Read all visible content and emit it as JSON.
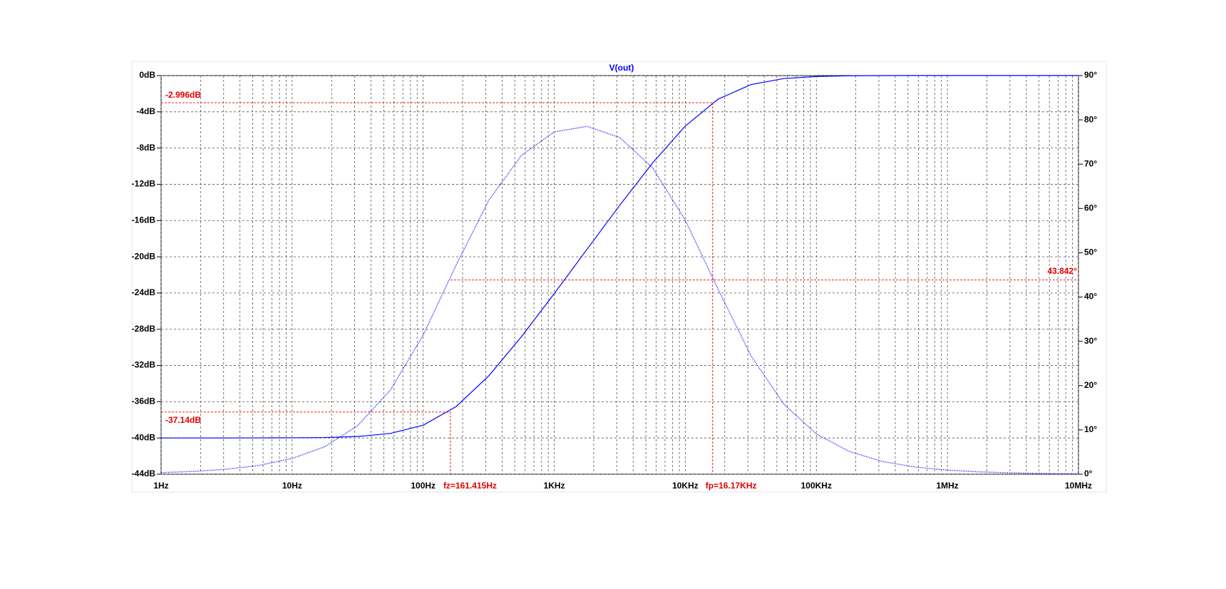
{
  "chart_data": {
    "type": "line",
    "title": "V(out)",
    "xscale": "log",
    "x": [
      1,
      1.778,
      3.162,
      5.623,
      10,
      17.78,
      31.62,
      56.23,
      100,
      177.8,
      316.2,
      562.3,
      1000,
      1778,
      3162,
      5623,
      10000,
      17783,
      31623,
      56234,
      100000,
      177828,
      316228,
      562341,
      1000000,
      1778279,
      3162278,
      5623413,
      10000000
    ],
    "series": [
      {
        "color": "#0000ff",
        "style": "solid",
        "axis": "y",
        "values": [
          -40.0,
          -40.0,
          -40.0,
          -39.99,
          -39.98,
          -39.95,
          -39.84,
          -39.5,
          -38.59,
          -36.55,
          -33.15,
          -28.82,
          -24.07,
          -19.17,
          -14.31,
          -9.65,
          -5.57,
          -2.6,
          -1.0,
          -0.33,
          -0.1,
          -0.02,
          0.0,
          0.01,
          0.01,
          0.01,
          0.01,
          0.01,
          0.01
        ]
      },
      {
        "color": "#0000ff",
        "style": "dotted",
        "axis": "y2",
        "values": [
          0.36,
          0.63,
          1.12,
          2.0,
          3.55,
          6.22,
          10.97,
          19.01,
          31.42,
          47.14,
          61.84,
          71.99,
          77.29,
          78.53,
          76.01,
          69.19,
          57.35,
          41.77,
          26.79,
          15.88,
          9.1,
          5.15,
          2.9,
          1.63,
          0.92,
          0.52,
          0.29,
          0.16,
          0.09
        ]
      }
    ],
    "xlim": [
      1,
      10000000
    ],
    "xticks": [
      {
        "value": 1,
        "label": "1Hz"
      },
      {
        "value": 10,
        "label": "10Hz"
      },
      {
        "value": 100,
        "label": "100Hz"
      },
      {
        "value": 1000,
        "label": "1KHz"
      },
      {
        "value": 10000,
        "label": "10KHz"
      },
      {
        "value": 100000,
        "label": "100KHz"
      },
      {
        "value": 1000000,
        "label": "1MHz"
      },
      {
        "value": 10000000,
        "label": "10MHz"
      }
    ],
    "ylim": [
      -44,
      0
    ],
    "yticks": [
      {
        "value": 0,
        "label": "0dB"
      },
      {
        "value": -4,
        "label": "-4dB"
      },
      {
        "value": -8,
        "label": "-8dB"
      },
      {
        "value": -12,
        "label": "-12dB"
      },
      {
        "value": -16,
        "label": "-16dB"
      },
      {
        "value": -20,
        "label": "-20dB"
      },
      {
        "value": -24,
        "label": "-24dB"
      },
      {
        "value": -28,
        "label": "-28dB"
      },
      {
        "value": -32,
        "label": "-32dB"
      },
      {
        "value": -36,
        "label": "-36dB"
      },
      {
        "value": -40,
        "label": "-40dB"
      },
      {
        "value": -44,
        "label": "-44dB"
      }
    ],
    "y2lim": [
      0,
      90
    ],
    "y2ticks": [
      {
        "value": 90,
        "label": "90°"
      },
      {
        "value": 80,
        "label": "80°"
      },
      {
        "value": 70,
        "label": "70°"
      },
      {
        "value": 60,
        "label": "60°"
      },
      {
        "value": 50,
        "label": "50°"
      },
      {
        "value": 40,
        "label": "40°"
      },
      {
        "value": 30,
        "label": "30°"
      },
      {
        "value": 20,
        "label": "20°"
      },
      {
        "value": 10,
        "label": "10°"
      },
      {
        "value": 0,
        "label": "0°"
      }
    ],
    "grid": true,
    "cursor_color": "#e00000",
    "cursors": [
      {
        "x": {
          "value": 161.415,
          "label": "fz=161.415Hz"
        },
        "y": {
          "value": -37.14,
          "label": "-37.14dB"
        },
        "y2": {
          "value": 43.842,
          "label": "43.842°"
        }
      },
      {
        "x": {
          "value": 16170,
          "label": "fp=16.17KHz"
        },
        "y": {
          "value": -2.996,
          "label": "-2.996dB"
        }
      }
    ]
  }
}
